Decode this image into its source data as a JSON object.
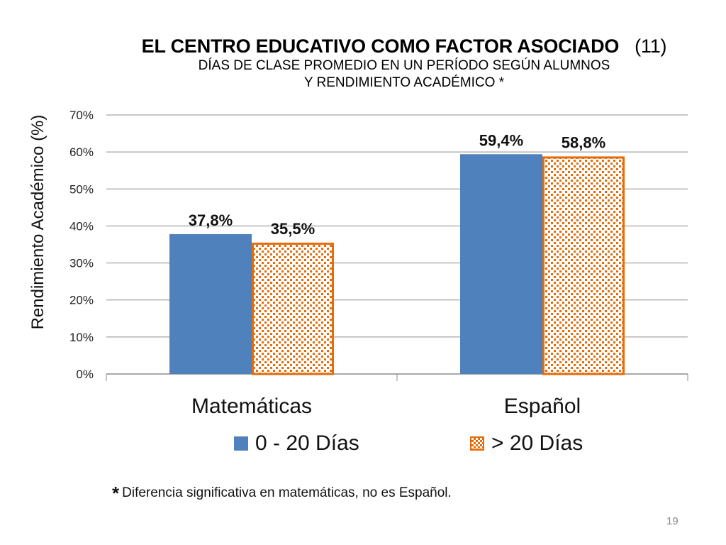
{
  "slide": {
    "title": "EL CENTRO EDUCATIVO COMO FACTOR ASOCIADO",
    "title_number": "(11)",
    "subtitle_line1": "DÍAS DE CLASE PROMEDIO EN UN PERÍODO SEGÚN ALUMNOS",
    "subtitle_line2": "Y RENDIMIENTO ACADÉMICO *",
    "footnote_star": "*",
    "footnote_text": "Diferencia significativa en matemáticas, no es Español.",
    "page_number": "19"
  },
  "chart_data": {
    "type": "bar",
    "categories": [
      "Matemáticas",
      "Español"
    ],
    "series": [
      {
        "name": "0 - 20 Días",
        "values": [
          37.8,
          59.4
        ],
        "labels": [
          "37,8%",
          "59,4%"
        ],
        "color": "#4F81BD",
        "pattern": "solid"
      },
      {
        "name": "> 20 Días",
        "values": [
          35.5,
          58.8
        ],
        "labels": [
          "35,5%",
          "58,8%"
        ],
        "color": "#E46C0A",
        "pattern": "checkered"
      }
    ],
    "ylabel": "Rendimiento Académico (%)",
    "ylim": [
      0,
      70
    ],
    "yticks": [
      0,
      10,
      20,
      30,
      40,
      50,
      60,
      70
    ],
    "ytick_labels": [
      "0%",
      "10%",
      "20%",
      "30%",
      "40%",
      "50%",
      "60%",
      "70%"
    ],
    "grid": true,
    "legend_position": "bottom"
  }
}
